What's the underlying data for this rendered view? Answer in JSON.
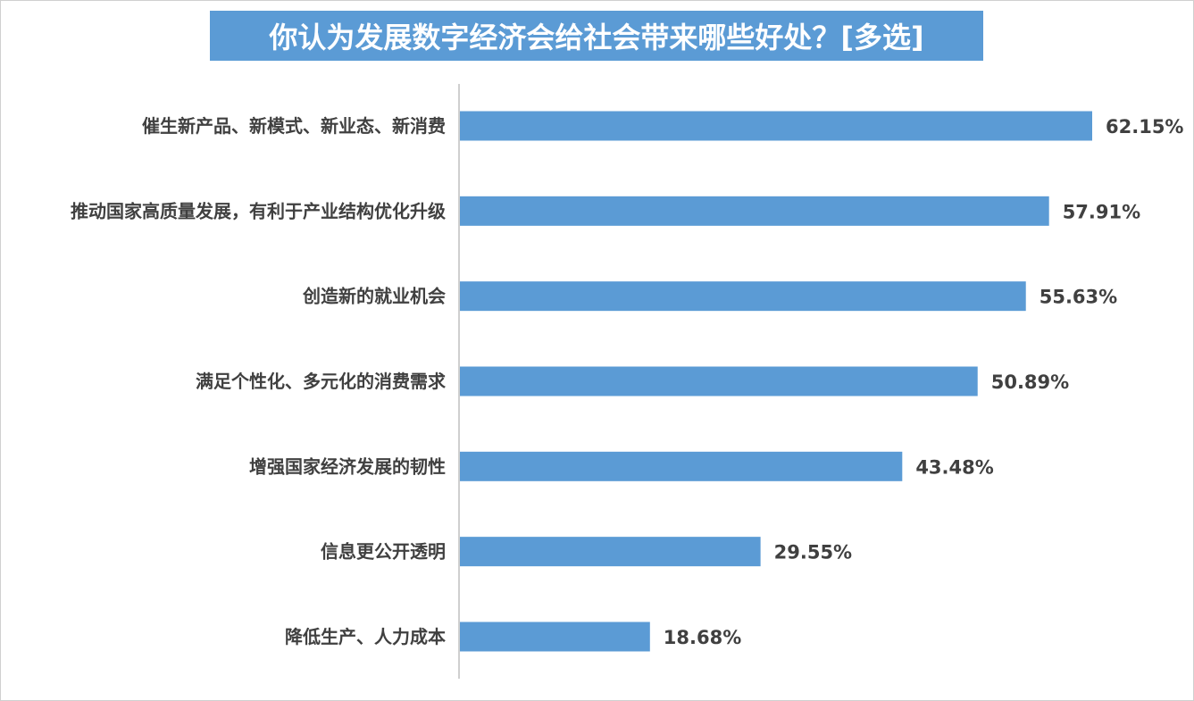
{
  "chart_data": {
    "type": "bar",
    "orientation": "horizontal",
    "title": "你认为发展数字经济会给社会带来哪些好处？[多选]",
    "categories": [
      "催生新产品、新模式、新业态、新消费",
      "推动国家高质量发展，有利于产业结构优化升级",
      "创造新的就业机会",
      "满足个性化、多元化的消费需求",
      "增强国家经济发展的韧性",
      "信息更公开透明",
      "降低生产、人力成本"
    ],
    "values": [
      62.15,
      57.91,
      55.63,
      50.89,
      43.48,
      29.55,
      18.68
    ],
    "value_labels": [
      "62.15%",
      "57.91%",
      "55.63%",
      "50.89%",
      "43.48%",
      "29.55%",
      "18.68%"
    ],
    "xlim": [
      0,
      70
    ],
    "grid": false,
    "legend": "none",
    "bar_color": "#5b9bd5"
  }
}
